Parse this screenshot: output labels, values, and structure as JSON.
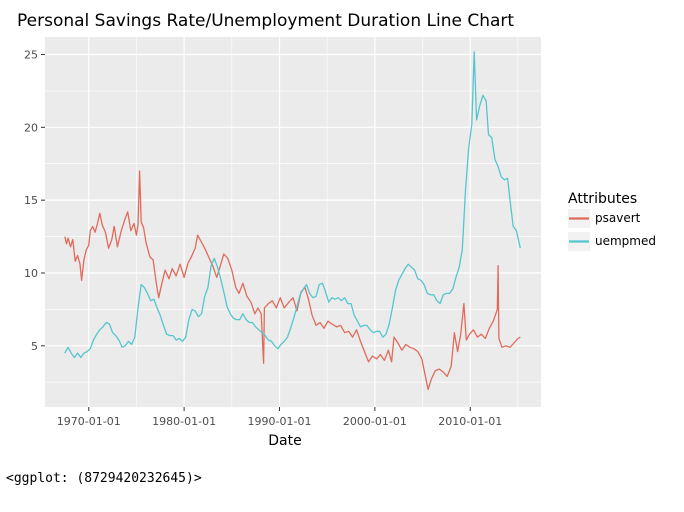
{
  "chart_data": {
    "type": "line",
    "title": "Personal Savings Rate/Unemployment Duration Line Chart",
    "xlabel": "Date",
    "ylabel": "",
    "x_ticks": [
      "1970-01-01",
      "1980-01-01",
      "1990-01-01",
      "2000-01-01",
      "2010-01-01"
    ],
    "y_ticks": [
      5,
      10,
      15,
      20,
      25
    ],
    "xlim": [
      "1965-06-01",
      "2017-06-01"
    ],
    "ylim": [
      0.8,
      26.2
    ],
    "grid": true,
    "legend": {
      "title": "Attributes",
      "placement": "right"
    },
    "series": [
      {
        "name": "psavert",
        "color": "#E06B5B",
        "points": [
          [
            "1967-07-01",
            12.5
          ],
          [
            "1967-09-01",
            12.0
          ],
          [
            "1967-11-01",
            12.4
          ],
          [
            "1968-02-01",
            11.8
          ],
          [
            "1968-05-01",
            12.3
          ],
          [
            "1968-08-01",
            10.8
          ],
          [
            "1968-11-01",
            11.2
          ],
          [
            "1969-02-01",
            10.6
          ],
          [
            "1969-04-01",
            9.5
          ],
          [
            "1969-07-01",
            10.9
          ],
          [
            "1969-10-01",
            11.6
          ],
          [
            "1970-01-01",
            11.9
          ],
          [
            "1970-03-01",
            12.9
          ],
          [
            "1970-06-01",
            13.2
          ],
          [
            "1970-09-01",
            12.8
          ],
          [
            "1970-12-01",
            13.4
          ],
          [
            "1971-03-01",
            14.1
          ],
          [
            "1971-06-01",
            13.3
          ],
          [
            "1971-10-01",
            12.8
          ],
          [
            "1972-02-01",
            11.7
          ],
          [
            "1972-06-01",
            12.3
          ],
          [
            "1972-09-01",
            13.2
          ],
          [
            "1973-01-01",
            11.8
          ],
          [
            "1973-06-01",
            12.9
          ],
          [
            "1973-10-01",
            13.6
          ],
          [
            "1974-02-01",
            14.2
          ],
          [
            "1974-06-01",
            12.9
          ],
          [
            "1974-10-01",
            13.4
          ],
          [
            "1975-01-01",
            12.6
          ],
          [
            "1975-03-01",
            13.3
          ],
          [
            "1975-05-01",
            17.0
          ],
          [
            "1975-07-01",
            13.5
          ],
          [
            "1975-10-01",
            13.1
          ],
          [
            "1976-01-01",
            12.1
          ],
          [
            "1976-06-01",
            11.1
          ],
          [
            "1976-10-01",
            10.9
          ],
          [
            "1977-02-01",
            9.3
          ],
          [
            "1977-05-01",
            8.3
          ],
          [
            "1977-09-01",
            9.3
          ],
          [
            "1978-01-01",
            10.2
          ],
          [
            "1978-06-01",
            9.6
          ],
          [
            "1978-10-01",
            10.3
          ],
          [
            "1979-03-01",
            9.8
          ],
          [
            "1979-08-01",
            10.6
          ],
          [
            "1980-01-01",
            9.7
          ],
          [
            "1980-06-01",
            10.7
          ],
          [
            "1980-10-01",
            11.1
          ],
          [
            "1981-03-01",
            11.7
          ],
          [
            "1981-06-01",
            12.6
          ],
          [
            "1981-10-01",
            12.2
          ],
          [
            "1982-03-01",
            11.7
          ],
          [
            "1982-08-01",
            11.1
          ],
          [
            "1983-01-01",
            10.5
          ],
          [
            "1983-06-01",
            9.7
          ],
          [
            "1983-10-01",
            10.4
          ],
          [
            "1984-03-01",
            11.3
          ],
          [
            "1984-08-01",
            11.0
          ],
          [
            "1985-01-01",
            10.2
          ],
          [
            "1985-06-01",
            9.0
          ],
          [
            "1985-10-01",
            8.6
          ],
          [
            "1986-03-01",
            9.3
          ],
          [
            "1986-08-01",
            8.4
          ],
          [
            "1987-01-01",
            8.0
          ],
          [
            "1987-06-01",
            7.2
          ],
          [
            "1987-10-01",
            7.6
          ],
          [
            "1988-02-01",
            7.2
          ],
          [
            "1988-05-01",
            3.8
          ],
          [
            "1988-06-01",
            7.6
          ],
          [
            "1988-11-01",
            7.9
          ],
          [
            "1989-04-01",
            8.1
          ],
          [
            "1989-09-01",
            7.6
          ],
          [
            "1990-02-01",
            8.3
          ],
          [
            "1990-07-01",
            7.6
          ],
          [
            "1991-01-01",
            8.0
          ],
          [
            "1991-06-01",
            8.3
          ],
          [
            "1991-11-01",
            7.4
          ],
          [
            "1992-04-01",
            8.7
          ],
          [
            "1992-09-01",
            9.0
          ],
          [
            "1993-01-01",
            8.3
          ],
          [
            "1993-06-01",
            7.1
          ],
          [
            "1993-11-01",
            6.4
          ],
          [
            "1994-04-01",
            6.6
          ],
          [
            "1994-09-01",
            6.2
          ],
          [
            "1995-02-01",
            6.7
          ],
          [
            "1995-07-01",
            6.5
          ],
          [
            "1996-01-01",
            6.3
          ],
          [
            "1996-06-01",
            6.4
          ],
          [
            "1996-11-01",
            5.9
          ],
          [
            "1997-04-01",
            6.0
          ],
          [
            "1997-09-01",
            5.6
          ],
          [
            "1998-02-01",
            6.1
          ],
          [
            "1998-07-01",
            5.3
          ],
          [
            "1998-12-01",
            4.6
          ],
          [
            "1999-05-01",
            3.9
          ],
          [
            "1999-10-01",
            4.3
          ],
          [
            "2000-03-01",
            4.1
          ],
          [
            "2000-08-01",
            4.4
          ],
          [
            "2001-01-01",
            4.0
          ],
          [
            "2001-06-01",
            4.7
          ],
          [
            "2001-10-01",
            3.9
          ],
          [
            "2002-01-01",
            5.6
          ],
          [
            "2002-06-01",
            5.2
          ],
          [
            "2002-11-01",
            4.7
          ],
          [
            "2003-04-01",
            5.1
          ],
          [
            "2003-09-01",
            4.9
          ],
          [
            "2004-02-01",
            4.8
          ],
          [
            "2004-07-01",
            4.6
          ],
          [
            "2004-12-01",
            4.1
          ],
          [
            "2005-05-01",
            2.8
          ],
          [
            "2005-08-01",
            2.0
          ],
          [
            "2005-12-01",
            2.7
          ],
          [
            "2006-05-01",
            3.3
          ],
          [
            "2006-10-01",
            3.4
          ],
          [
            "2007-03-01",
            3.2
          ],
          [
            "2007-08-01",
            2.9
          ],
          [
            "2008-01-01",
            3.6
          ],
          [
            "2008-05-01",
            5.9
          ],
          [
            "2008-09-01",
            4.6
          ],
          [
            "2009-01-01",
            5.8
          ],
          [
            "2009-05-01",
            7.9
          ],
          [
            "2009-08-01",
            5.4
          ],
          [
            "2009-12-01",
            5.8
          ],
          [
            "2010-05-01",
            6.1
          ],
          [
            "2010-10-01",
            5.6
          ],
          [
            "2011-03-01",
            5.8
          ],
          [
            "2011-08-01",
            5.5
          ],
          [
            "2012-01-01",
            6.2
          ],
          [
            "2012-06-01",
            6.7
          ],
          [
            "2012-11-01",
            7.5
          ],
          [
            "2012-12-01",
            10.5
          ],
          [
            "2013-01-01",
            5.5
          ],
          [
            "2013-05-01",
            4.9
          ],
          [
            "2013-10-01",
            5.0
          ],
          [
            "2014-03-01",
            4.9
          ],
          [
            "2014-08-01",
            5.2
          ],
          [
            "2015-01-01",
            5.5
          ],
          [
            "2015-04-01",
            5.6
          ]
        ]
      },
      {
        "name": "uempmed",
        "color": "#54C6CF",
        "points": [
          [
            "1967-07-01",
            4.5
          ],
          [
            "1967-11-01",
            4.9
          ],
          [
            "1968-03-01",
            4.5
          ],
          [
            "1968-07-01",
            4.2
          ],
          [
            "1968-11-01",
            4.5
          ],
          [
            "1969-03-01",
            4.2
          ],
          [
            "1969-07-01",
            4.5
          ],
          [
            "1969-11-01",
            4.6
          ],
          [
            "1970-03-01",
            4.8
          ],
          [
            "1970-07-01",
            5.4
          ],
          [
            "1970-11-01",
            5.8
          ],
          [
            "1971-03-01",
            6.1
          ],
          [
            "1971-07-01",
            6.3
          ],
          [
            "1971-11-01",
            6.6
          ],
          [
            "1972-03-01",
            6.5
          ],
          [
            "1972-07-01",
            5.9
          ],
          [
            "1972-11-01",
            5.7
          ],
          [
            "1973-03-01",
            5.4
          ],
          [
            "1973-07-01",
            4.9
          ],
          [
            "1973-11-01",
            5.0
          ],
          [
            "1974-03-01",
            5.3
          ],
          [
            "1974-07-01",
            5.1
          ],
          [
            "1974-11-01",
            5.6
          ],
          [
            "1975-03-01",
            7.6
          ],
          [
            "1975-07-01",
            9.2
          ],
          [
            "1975-11-01",
            9.0
          ],
          [
            "1976-03-01",
            8.6
          ],
          [
            "1976-07-01",
            8.1
          ],
          [
            "1976-11-01",
            8.2
          ],
          [
            "1977-03-01",
            7.6
          ],
          [
            "1977-07-01",
            7.1
          ],
          [
            "1977-11-01",
            6.4
          ],
          [
            "1978-03-01",
            5.8
          ],
          [
            "1978-07-01",
            5.7
          ],
          [
            "1978-11-01",
            5.7
          ],
          [
            "1979-03-01",
            5.4
          ],
          [
            "1979-07-01",
            5.5
          ],
          [
            "1979-11-01",
            5.3
          ],
          [
            "1980-03-01",
            5.6
          ],
          [
            "1980-07-01",
            6.8
          ],
          [
            "1980-11-01",
            7.5
          ],
          [
            "1981-03-01",
            7.4
          ],
          [
            "1981-07-01",
            7.0
          ],
          [
            "1981-11-01",
            7.2
          ],
          [
            "1982-03-01",
            8.4
          ],
          [
            "1982-07-01",
            9.0
          ],
          [
            "1982-11-01",
            10.5
          ],
          [
            "1983-03-01",
            11.0
          ],
          [
            "1983-07-01",
            10.4
          ],
          [
            "1983-11-01",
            9.6
          ],
          [
            "1984-03-01",
            8.7
          ],
          [
            "1984-07-01",
            7.7
          ],
          [
            "1984-11-01",
            7.2
          ],
          [
            "1985-03-01",
            6.9
          ],
          [
            "1985-07-01",
            6.8
          ],
          [
            "1985-11-01",
            6.8
          ],
          [
            "1986-03-01",
            7.2
          ],
          [
            "1986-07-01",
            6.8
          ],
          [
            "1986-11-01",
            6.6
          ],
          [
            "1987-03-01",
            6.6
          ],
          [
            "1987-07-01",
            6.3
          ],
          [
            "1987-11-01",
            6.1
          ],
          [
            "1988-03-01",
            5.9
          ],
          [
            "1988-07-01",
            5.7
          ],
          [
            "1988-11-01",
            5.4
          ],
          [
            "1989-03-01",
            5.3
          ],
          [
            "1989-07-01",
            5.0
          ],
          [
            "1989-11-01",
            4.8
          ],
          [
            "1990-03-01",
            5.1
          ],
          [
            "1990-07-01",
            5.3
          ],
          [
            "1990-11-01",
            5.6
          ],
          [
            "1991-03-01",
            6.2
          ],
          [
            "1991-07-01",
            6.9
          ],
          [
            "1991-11-01",
            7.7
          ],
          [
            "1992-03-01",
            8.5
          ],
          [
            "1992-07-01",
            8.9
          ],
          [
            "1992-11-01",
            9.2
          ],
          [
            "1993-03-01",
            8.6
          ],
          [
            "1993-07-01",
            8.3
          ],
          [
            "1993-11-01",
            8.4
          ],
          [
            "1994-03-01",
            9.2
          ],
          [
            "1994-07-01",
            9.3
          ],
          [
            "1994-11-01",
            8.7
          ],
          [
            "1995-03-01",
            8.0
          ],
          [
            "1995-07-01",
            8.3
          ],
          [
            "1995-11-01",
            8.2
          ],
          [
            "1996-03-01",
            8.3
          ],
          [
            "1996-07-01",
            8.1
          ],
          [
            "1996-11-01",
            8.3
          ],
          [
            "1997-03-01",
            7.9
          ],
          [
            "1997-07-01",
            7.9
          ],
          [
            "1997-11-01",
            7.1
          ],
          [
            "1998-03-01",
            6.7
          ],
          [
            "1998-07-01",
            6.3
          ],
          [
            "1998-11-01",
            6.4
          ],
          [
            "1999-03-01",
            6.4
          ],
          [
            "1999-07-01",
            6.1
          ],
          [
            "1999-11-01",
            5.9
          ],
          [
            "2000-03-01",
            6.0
          ],
          [
            "2000-07-01",
            6.0
          ],
          [
            "2000-11-01",
            5.6
          ],
          [
            "2001-03-01",
            5.8
          ],
          [
            "2001-07-01",
            6.5
          ],
          [
            "2001-11-01",
            7.6
          ],
          [
            "2002-03-01",
            8.8
          ],
          [
            "2002-07-01",
            9.5
          ],
          [
            "2002-11-01",
            9.9
          ],
          [
            "2003-03-01",
            10.3
          ],
          [
            "2003-07-01",
            10.6
          ],
          [
            "2003-11-01",
            10.4
          ],
          [
            "2004-03-01",
            10.2
          ],
          [
            "2004-07-01",
            9.6
          ],
          [
            "2004-11-01",
            9.5
          ],
          [
            "2005-03-01",
            9.2
          ],
          [
            "2005-07-01",
            8.6
          ],
          [
            "2005-11-01",
            8.5
          ],
          [
            "2006-03-01",
            8.5
          ],
          [
            "2006-07-01",
            8.1
          ],
          [
            "2006-11-01",
            7.9
          ],
          [
            "2007-03-01",
            8.5
          ],
          [
            "2007-07-01",
            8.6
          ],
          [
            "2007-11-01",
            8.6
          ],
          [
            "2008-03-01",
            8.9
          ],
          [
            "2008-07-01",
            9.7
          ],
          [
            "2008-11-01",
            10.4
          ],
          [
            "2009-03-01",
            11.6
          ],
          [
            "2009-07-01",
            15.7
          ],
          [
            "2009-11-01",
            18.6
          ],
          [
            "2010-03-01",
            20.2
          ],
          [
            "2010-06-01",
            25.2
          ],
          [
            "2010-09-01",
            20.5
          ],
          [
            "2011-01-01",
            21.5
          ],
          [
            "2011-05-01",
            22.2
          ],
          [
            "2011-09-01",
            21.8
          ],
          [
            "2011-12-01",
            19.5
          ],
          [
            "2012-04-01",
            19.3
          ],
          [
            "2012-08-01",
            17.8
          ],
          [
            "2012-12-01",
            17.3
          ],
          [
            "2013-04-01",
            16.6
          ],
          [
            "2013-08-01",
            16.4
          ],
          [
            "2013-12-01",
            16.5
          ],
          [
            "2014-03-01",
            15.0
          ],
          [
            "2014-07-01",
            13.2
          ],
          [
            "2014-11-01",
            12.9
          ],
          [
            "2015-04-01",
            11.7
          ]
        ]
      }
    ]
  },
  "footer_text": "<ggplot: (8729420232645)>"
}
